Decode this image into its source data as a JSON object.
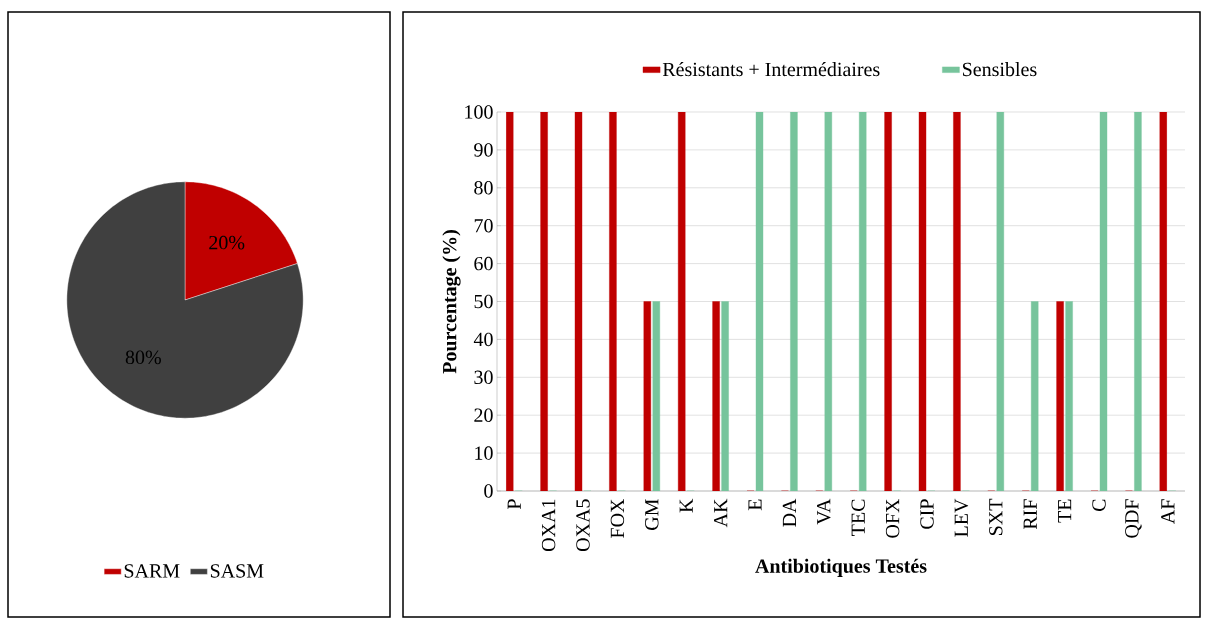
{
  "chart_data": [
    {
      "type": "pie",
      "categories": [
        "SARM",
        "SASM"
      ],
      "values": [
        20,
        80
      ],
      "colors": [
        "#c00000",
        "#404040"
      ],
      "value_labels": [
        "20%",
        "80%"
      ],
      "legend": "bottom"
    },
    {
      "type": "bar",
      "categories": [
        "P",
        "OXA1",
        "OXA5",
        "FOX",
        "GM",
        "K",
        "AK",
        "E",
        "DA",
        "VA",
        "TEC",
        "OFX",
        "CIP",
        "LEV",
        "SXT",
        "RIF",
        "TE",
        "C",
        "QDF",
        "AF"
      ],
      "series": [
        {
          "name": "Résistants + Intermédiaires",
          "color": "#c00000",
          "values": [
            100,
            100,
            100,
            100,
            50,
            100,
            50,
            0,
            0,
            0,
            0,
            100,
            100,
            100,
            0,
            0,
            50,
            0,
            0,
            100
          ]
        },
        {
          "name": "Sensibles",
          "color": "#77c49c",
          "values": [
            0,
            0,
            0,
            0,
            50,
            0,
            50,
            100,
            100,
            100,
            100,
            0,
            0,
            0,
            100,
            50,
            50,
            100,
            100,
            0
          ]
        }
      ],
      "ylim": [
        0,
        100
      ],
      "yticks": [
        0,
        10,
        20,
        30,
        40,
        50,
        60,
        70,
        80,
        90,
        100
      ],
      "grid": "y",
      "legend": "top",
      "xlabel": "Antibiotiques Testés",
      "ylabel": "Pourcentage (%)"
    }
  ]
}
